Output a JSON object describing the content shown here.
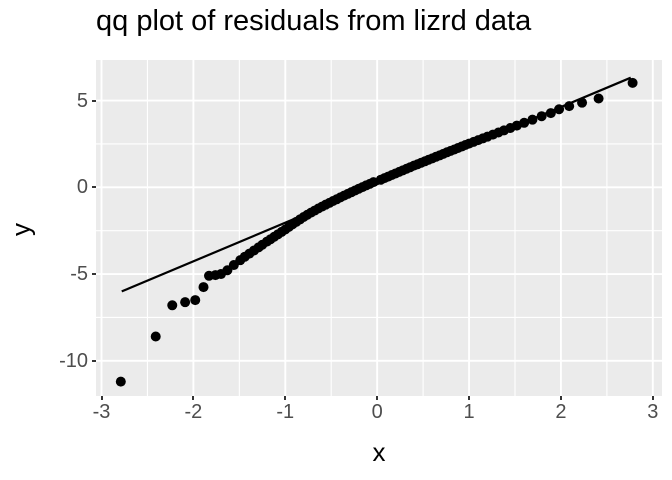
{
  "title": "qq plot of residuals from lizrd data",
  "colors": {
    "panel_background": "#ebebeb",
    "grid": "#ffffff",
    "points": "#000000",
    "line": "#000000",
    "axis_text": "#4d4d4d",
    "tick_mark": "#333333",
    "title_text": "#000000"
  },
  "chart_data": {
    "type": "scatter",
    "title": "qq plot of residuals from lizrd data",
    "xlabel": "x",
    "ylabel": "y",
    "xlim": [
      -3.06,
      3.1
    ],
    "ylim": [
      -12.03,
      7.34
    ],
    "x_ticks": [
      -3,
      -2,
      -1,
      0,
      1,
      2,
      3
    ],
    "y_ticks": [
      5,
      0,
      -5,
      -10
    ],
    "x_minor": [
      -2.5,
      -1.5,
      -0.5,
      0.5,
      1.5,
      2.5
    ],
    "y_minor": [
      2.5,
      -2.5,
      -7.5
    ],
    "grid": "white major and minor gridlines on gray panel, no legend",
    "point_radius_px": 5,
    "qq_line": {
      "x1": -2.78,
      "y1": -6.0,
      "x2": 2.76,
      "y2": 6.32
    },
    "points": [
      [
        -2.79,
        -11.2
      ],
      [
        -2.41,
        -8.6
      ],
      [
        -2.23,
        -6.8
      ],
      [
        -2.09,
        -6.62
      ],
      [
        -1.98,
        -6.5
      ],
      [
        -1.89,
        -5.75
      ],
      [
        -1.83,
        -5.1
      ],
      [
        -1.76,
        -5.06
      ],
      [
        -1.7,
        -5.0
      ],
      [
        -1.63,
        -4.78
      ],
      [
        -1.56,
        -4.48
      ],
      [
        -1.49,
        -4.2
      ],
      [
        -1.44,
        -4.0
      ],
      [
        -1.39,
        -3.82
      ],
      [
        -1.34,
        -3.64
      ],
      [
        -1.29,
        -3.46
      ],
      [
        -1.25,
        -3.31
      ],
      [
        -1.2,
        -3.13
      ],
      [
        -1.16,
        -2.99
      ],
      [
        -1.12,
        -2.85
      ],
      [
        -1.08,
        -2.71
      ],
      [
        -1.04,
        -2.57
      ],
      [
        -1.0,
        -2.43
      ],
      [
        -0.96,
        -2.28
      ],
      [
        -0.92,
        -2.13
      ],
      [
        -0.88,
        -1.99
      ],
      [
        -0.84,
        -1.85
      ],
      [
        -0.8,
        -1.71
      ],
      [
        -0.76,
        -1.58
      ],
      [
        -0.72,
        -1.46
      ],
      [
        -0.68,
        -1.34
      ],
      [
        -0.64,
        -1.22
      ],
      [
        -0.6,
        -1.11
      ],
      [
        -0.56,
        -1.0
      ],
      [
        -0.52,
        -0.9
      ],
      [
        -0.48,
        -0.79
      ],
      [
        -0.44,
        -0.69
      ],
      [
        -0.4,
        -0.58
      ],
      [
        -0.36,
        -0.48
      ],
      [
        -0.32,
        -0.38
      ],
      [
        -0.28,
        -0.28
      ],
      [
        -0.24,
        -0.18
      ],
      [
        -0.2,
        -0.08
      ],
      [
        -0.16,
        0.01
      ],
      [
        -0.12,
        0.11
      ],
      [
        -0.08,
        0.2
      ],
      [
        -0.04,
        0.3
      ],
      [
        0.04,
        0.44
      ],
      [
        0.08,
        0.53
      ],
      [
        0.12,
        0.62
      ],
      [
        0.16,
        0.71
      ],
      [
        0.2,
        0.8
      ],
      [
        0.24,
        0.89
      ],
      [
        0.28,
        0.98
      ],
      [
        0.32,
        1.07
      ],
      [
        0.36,
        1.16
      ],
      [
        0.4,
        1.25
      ],
      [
        0.44,
        1.33
      ],
      [
        0.48,
        1.42
      ],
      [
        0.52,
        1.5
      ],
      [
        0.56,
        1.59
      ],
      [
        0.6,
        1.67
      ],
      [
        0.64,
        1.76
      ],
      [
        0.68,
        1.84
      ],
      [
        0.72,
        1.93
      ],
      [
        0.76,
        2.02
      ],
      [
        0.8,
        2.1
      ],
      [
        0.84,
        2.18
      ],
      [
        0.88,
        2.27
      ],
      [
        0.92,
        2.35
      ],
      [
        0.96,
        2.44
      ],
      [
        1.0,
        2.52
      ],
      [
        1.05,
        2.62
      ],
      [
        1.1,
        2.72
      ],
      [
        1.15,
        2.82
      ],
      [
        1.2,
        2.92
      ],
      [
        1.26,
        3.04
      ],
      [
        1.32,
        3.16
      ],
      [
        1.38,
        3.28
      ],
      [
        1.45,
        3.42
      ],
      [
        1.52,
        3.56
      ],
      [
        1.6,
        3.72
      ],
      [
        1.69,
        3.9
      ],
      [
        1.79,
        4.1
      ],
      [
        1.89,
        4.28
      ],
      [
        1.98,
        4.5
      ],
      [
        2.09,
        4.68
      ],
      [
        2.23,
        4.88
      ],
      [
        2.41,
        5.12
      ],
      [
        2.78,
        6.02
      ]
    ]
  }
}
